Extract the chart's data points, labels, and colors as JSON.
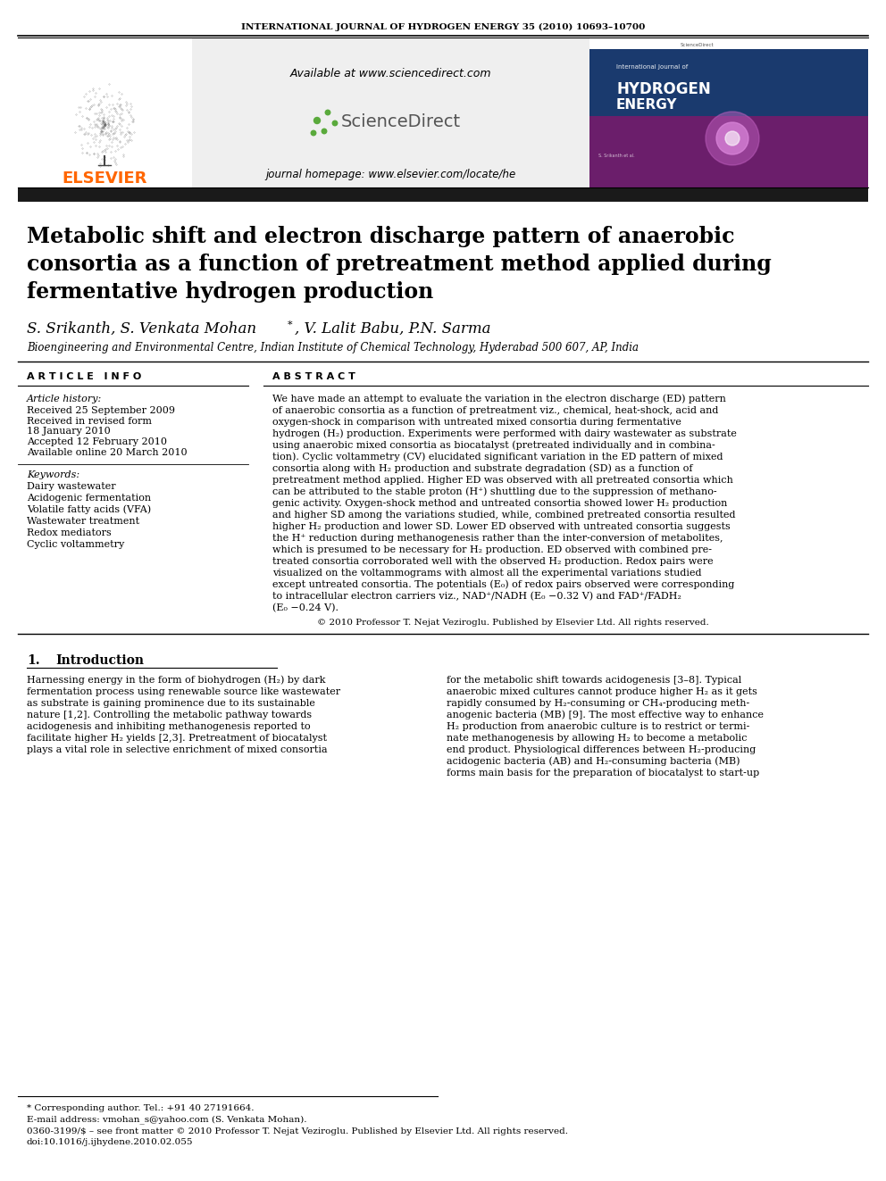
{
  "page_width": 9.92,
  "page_height": 13.23,
  "bg_color": "#ffffff",
  "journal_header": "INTERNATIONAL JOURNAL OF HYDROGEN ENERGY 35 (2010) 10693–10700",
  "sciencedirect_text": "Available at www.sciencedirect.com",
  "journal_homepage": "journal homepage: www.elsevier.com/locate/he",
  "elsevier_color": "#FF6600",
  "elsevier_text": "ELSEVIER",
  "title_line1": "Metabolic shift and electron discharge pattern of anaerobic",
  "title_line2": "consortia as a function of pretreatment method applied during",
  "title_line3": "fermentative hydrogen production",
  "authors_part1": "S. Srikanth, S. Venkata Mohan",
  "authors_part2": ", V. Lalit Babu, P.N. Sarma",
  "affiliation": "Bioengineering and Environmental Centre, Indian Institute of Chemical Technology, Hyderabad 500 607, AP, India",
  "article_info_header": "A R T I C L E   I N F O",
  "abstract_header": "A B S T R A C T",
  "article_history_label": "Article history:",
  "received_1": "Received 25 September 2009",
  "received_revised": "Received in revised form",
  "revised_date": "18 January 2010",
  "accepted": "Accepted 12 February 2010",
  "available_online": "Available online 20 March 2010",
  "keywords_label": "Keywords:",
  "keywords": [
    "Dairy wastewater",
    "Acidogenic fermentation",
    "Volatile fatty acids (VFA)",
    "Wastewater treatment",
    "Redox mediators",
    "Cyclic voltammetry"
  ],
  "abstract_lines": [
    "We have made an attempt to evaluate the variation in the electron discharge (ED) pattern",
    "of anaerobic consortia as a function of pretreatment viz., chemical, heat-shock, acid and",
    "oxygen-shock in comparison with untreated mixed consortia during fermentative",
    "hydrogen (H₂) production. Experiments were performed with dairy wastewater as substrate",
    "using anaerobic mixed consortia as biocatalyst (pretreated individually and in combina-",
    "tion). Cyclic voltammetry (CV) elucidated significant variation in the ED pattern of mixed",
    "consortia along with H₂ production and substrate degradation (SD) as a function of",
    "pretreatment method applied. Higher ED was observed with all pretreated consortia which",
    "can be attributed to the stable proton (H⁺) shuttling due to the suppression of methano-",
    "genic activity. Oxygen-shock method and untreated consortia showed lower H₂ production",
    "and higher SD among the variations studied, while, combined pretreated consortia resulted",
    "higher H₂ production and lower SD. Lower ED observed with untreated consortia suggests",
    "the H⁺ reduction during methanogenesis rather than the inter-conversion of metabolites,",
    "which is presumed to be necessary for H₂ production. ED observed with combined pre-",
    "treated consortia corroborated well with the observed H₂ production. Redox pairs were",
    "visualized on the voltammograms with almost all the experimental variations studied",
    "except untreated consortia. The potentials (E₀) of redox pairs observed were corresponding",
    "to intracellular electron carriers viz., NAD⁺/NADH (E₀ −0.32 V) and FAD⁺/FADH₂",
    "(E₀ −0.24 V)."
  ],
  "abstract_copyright": "© 2010 Professor T. Nejat Veziroglu. Published by Elsevier Ltd. All rights reserved.",
  "intro_left_lines": [
    "Harnessing energy in the form of biohydrogen (H₂) by dark",
    "fermentation process using renewable source like wastewater",
    "as substrate is gaining prominence due to its sustainable",
    "nature [1,2]. Controlling the metabolic pathway towards",
    "acidogenesis and inhibiting methanogenesis reported to",
    "facilitate higher H₂ yields [2,3]. Pretreatment of biocatalyst",
    "plays a vital role in selective enrichment of mixed consortia"
  ],
  "intro_right_lines": [
    "for the metabolic shift towards acidogenesis [3–8]. Typical",
    "anaerobic mixed cultures cannot produce higher H₂ as it gets",
    "rapidly consumed by H₂-consuming or CH₄-producing meth-",
    "anogenic bacteria (MB) [9]. The most effective way to enhance",
    "H₂ production from anaerobic culture is to restrict or termi-",
    "nate methanogenesis by allowing H₂ to become a metabolic",
    "end product. Physiological differences between H₂-producing",
    "acidogenic bacteria (AB) and H₂-consuming bacteria (MB)",
    "forms main basis for the preparation of biocatalyst to start-up"
  ],
  "footnote_corresponding": "* Corresponding author. Tel.: +91 40 27191664.",
  "footnote_email": "E-mail address: vmohan_s@yahoo.com (S. Venkata Mohan).",
  "footnote_issn": "0360-3199/$ – see front matter © 2010 Professor T. Nejat Veziroglu. Published by Elsevier Ltd. All rights reserved.",
  "footnote_doi": "doi:10.1016/j.ijhydene.2010.02.055",
  "header_bar_color": "#1a1a1a",
  "light_gray_bg": "#efefef",
  "sciencedirect_green": "#5aaa3c",
  "sciencedirect_gray": "#555555",
  "hydrogen_journal_bg": "#1a3a6e",
  "hydrogen_journal_purple": "#7b2f7b"
}
